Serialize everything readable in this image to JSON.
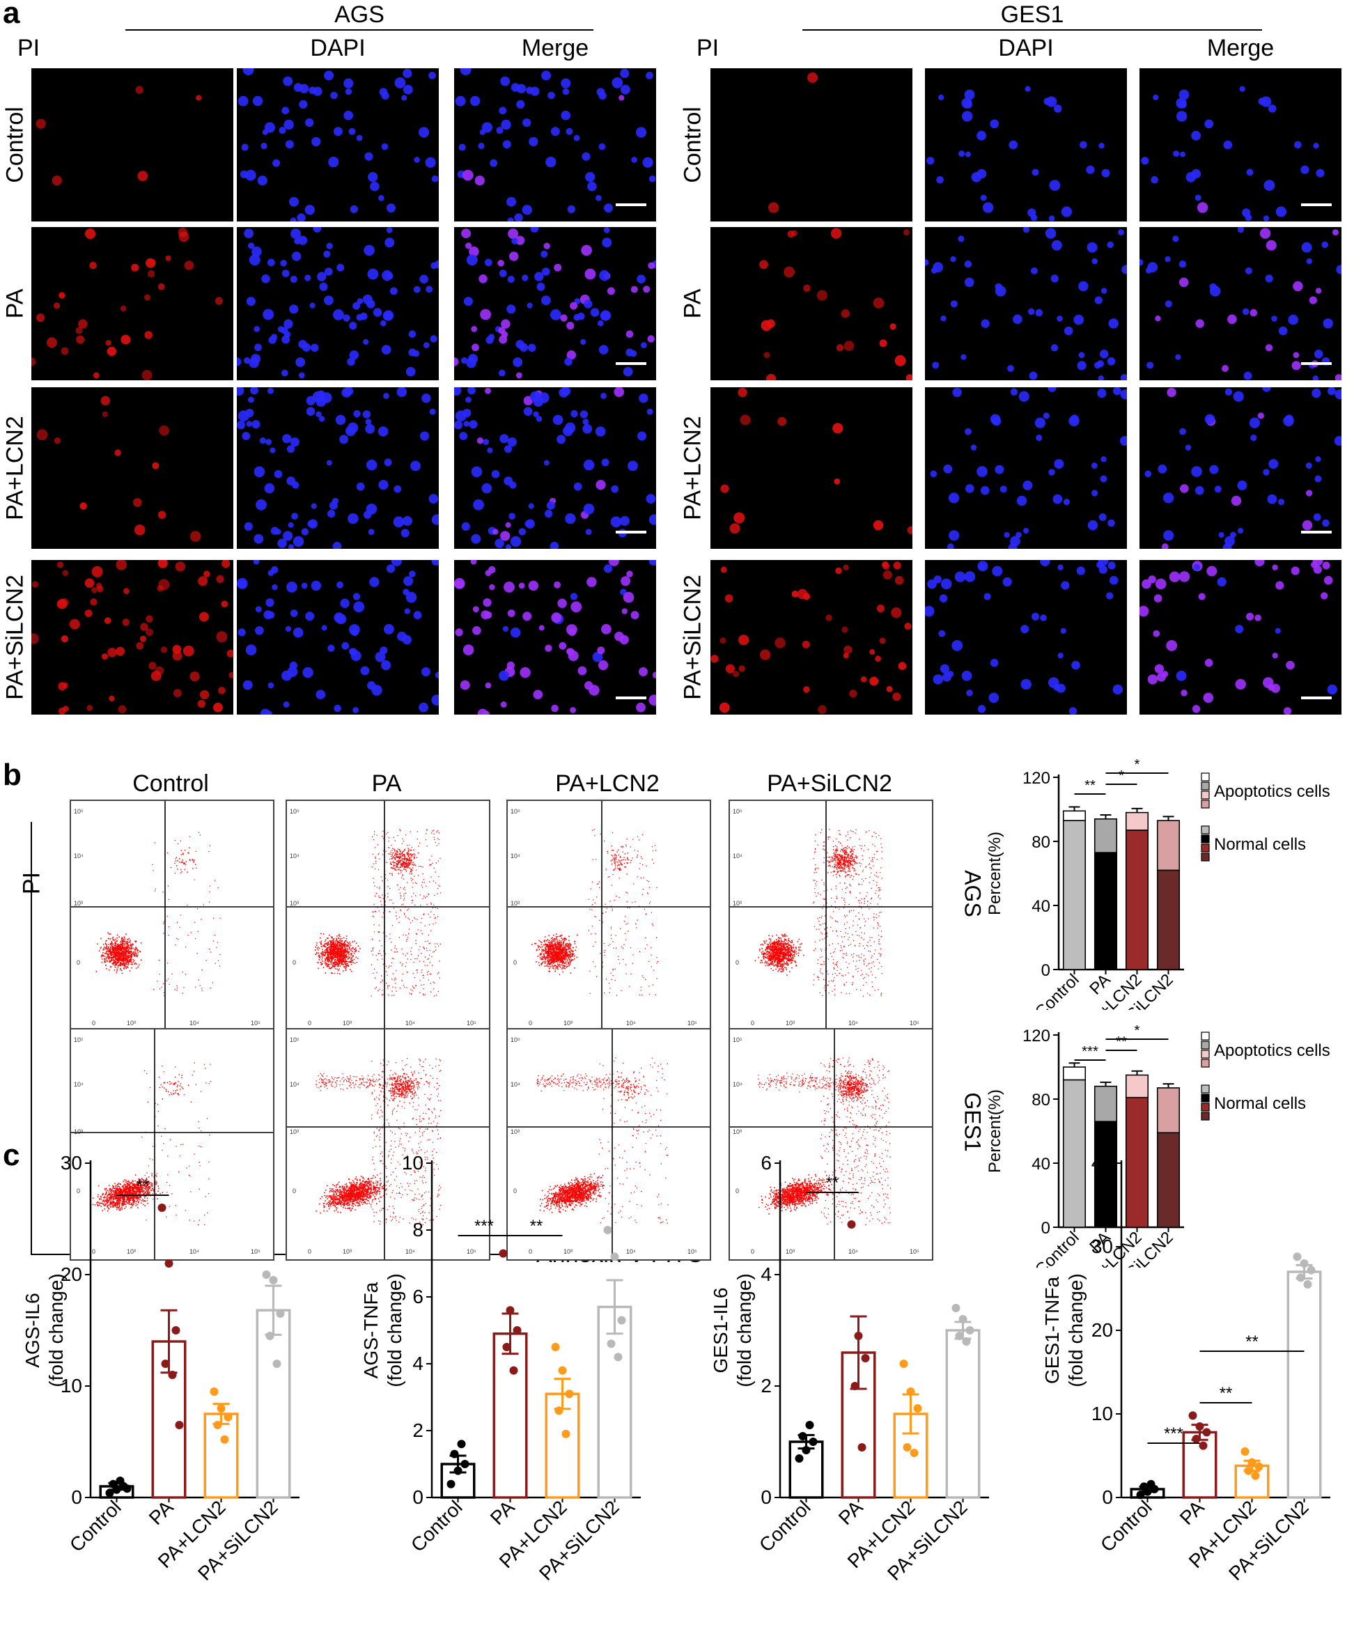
{
  "panel_labels": {
    "a": "a",
    "b": "b",
    "c": "c"
  },
  "panel_a": {
    "groups": [
      {
        "title": "AGS",
        "columns": [
          "PI",
          "DAPI",
          "Merge"
        ]
      },
      {
        "title": "GES1",
        "columns": [
          "PI",
          "DAPI",
          "Merge"
        ]
      }
    ],
    "rows": [
      "Control",
      "PA",
      "PA+LCN2",
      "PA+SiLCN2"
    ],
    "colors": {
      "PI": "#e01010",
      "DAPI": "#2a2aff",
      "Merge": "#a030ff"
    }
  },
  "panel_b": {
    "columns": [
      "Control",
      "PA",
      "PA+LCN2",
      "PA+SiLCN2"
    ],
    "rows": [
      "AGS",
      "GES1"
    ],
    "y_axis_label": "PI",
    "x_axis_label": "Annexin V-FITC",
    "dot_color": "#ff0000",
    "tick_labels": {
      "zero": "0",
      "t3": "10³",
      "t4": "10⁴",
      "t5": "10⁵"
    }
  },
  "chart_data": [
    {
      "type": "bar",
      "id": "ags-percent",
      "ylabel": "Percent(%)",
      "categories": [
        "Control",
        "PA",
        "PA+LCN2",
        "PA+SiLCN2"
      ],
      "ylim": [
        0,
        120
      ],
      "yticks": [
        0,
        40,
        80,
        120
      ],
      "series": [
        {
          "name": "Normal cells",
          "values": [
            93,
            73,
            87,
            62
          ],
          "colors": [
            "#bdbdbd",
            "#000000",
            "#9b2a2a",
            "#6b2a2a"
          ]
        },
        {
          "name": "Apoptotics cells",
          "values": [
            6,
            21,
            11,
            31
          ],
          "colors": [
            "#ffffff",
            "#a8a8a8",
            "#f5c9c9",
            "#d8a0a0"
          ]
        }
      ],
      "significance": [
        {
          "from": 0,
          "to": 1,
          "label": "**"
        },
        {
          "from": 1,
          "to": 2,
          "label": "*"
        },
        {
          "from": 1,
          "to": 3,
          "label": "*"
        }
      ]
    },
    {
      "type": "bar",
      "id": "ges1-percent",
      "ylabel": "Percent(%)",
      "categories": [
        "Control",
        "PA",
        "PA+LCN2",
        "PA+SiLCN2"
      ],
      "ylim": [
        0,
        120
      ],
      "yticks": [
        0,
        40,
        80,
        120
      ],
      "series": [
        {
          "name": "Normal cells",
          "values": [
            92,
            66,
            81,
            59
          ],
          "colors": [
            "#bdbdbd",
            "#000000",
            "#9b2a2a",
            "#6b2a2a"
          ]
        },
        {
          "name": "Apoptotics cells",
          "values": [
            8,
            22,
            14,
            28
          ],
          "colors": [
            "#ffffff",
            "#a8a8a8",
            "#f5c9c9",
            "#d8a0a0"
          ]
        }
      ],
      "significance": [
        {
          "from": 0,
          "to": 1,
          "label": "***"
        },
        {
          "from": 1,
          "to": 2,
          "label": "**"
        },
        {
          "from": 1,
          "to": 3,
          "label": "*"
        }
      ]
    },
    {
      "type": "bar",
      "id": "ags-il6",
      "ylabel": "AGS-IL6",
      "ylabel2": "(fold change)",
      "categories": [
        "Control",
        "PA",
        "PA+LCN2",
        "PA+SiLCN2"
      ],
      "ylim": [
        0,
        30
      ],
      "yticks": [
        0,
        10,
        20,
        30
      ],
      "values": [
        1.0,
        14.0,
        7.5,
        16.8
      ],
      "errors": [
        0.3,
        2.8,
        0.9,
        2.2
      ],
      "points": [
        [
          0.4,
          0.7,
          1.0,
          1.2,
          1.5,
          0.8
        ],
        [
          26.0,
          21.0,
          15.0,
          12.0,
          11.0,
          6.5
        ],
        [
          9.5,
          8.0,
          7.2,
          6.5,
          5.2
        ],
        [
          20.0,
          19.5,
          16.5,
          14.5,
          12.0
        ]
      ],
      "colors": [
        "#000000",
        "#8b1a1a",
        "#ff9a1a",
        "#b8b8b8"
      ],
      "significance": [
        {
          "from": 0,
          "to": 1,
          "label": "**"
        }
      ]
    },
    {
      "type": "bar",
      "id": "ags-tnfa",
      "ylabel": "AGS-TNFa",
      "ylabel2": "(fold change)",
      "categories": [
        "Control",
        "PA",
        "PA+LCN2",
        "PA+SiLCN2"
      ],
      "ylim": [
        0,
        10
      ],
      "yticks": [
        0,
        2,
        4,
        6,
        8,
        10
      ],
      "values": [
        1.0,
        4.9,
        3.1,
        5.7
      ],
      "errors": [
        0.25,
        0.6,
        0.45,
        0.8
      ],
      "points": [
        [
          0.4,
          0.8,
          1.0,
          1.3,
          1.6
        ],
        [
          7.3,
          5.6,
          5.0,
          4.5,
          3.8
        ],
        [
          4.5,
          3.8,
          3.1,
          2.6,
          1.9
        ],
        [
          8.0,
          7.2,
          5.3,
          4.6,
          4.2
        ]
      ],
      "colors": [
        "#000000",
        "#8b1a1a",
        "#ff9a1a",
        "#b8b8b8"
      ],
      "significance": [
        {
          "from": 0,
          "to": 1,
          "label": "***"
        },
        {
          "from": 1,
          "to": 2,
          "label": "**"
        }
      ]
    },
    {
      "type": "bar",
      "id": "ges1-il6",
      "ylabel": "GES1-IL6",
      "ylabel2": "(fold change)",
      "categories": [
        "Control",
        "PA",
        "PA+LCN2",
        "PA+SiLCN2"
      ],
      "ylim": [
        0,
        6
      ],
      "yticks": [
        0,
        2,
        4,
        6
      ],
      "values": [
        1.0,
        2.6,
        1.5,
        3.0
      ],
      "errors": [
        0.12,
        0.65,
        0.35,
        0.15
      ],
      "points": [
        [
          0.7,
          0.85,
          1.0,
          1.1,
          1.3
        ],
        [
          4.9,
          2.9,
          2.5,
          2.0,
          0.9
        ],
        [
          2.4,
          1.9,
          1.6,
          0.9,
          0.8
        ],
        [
          3.4,
          3.2,
          3.0,
          2.9,
          2.8
        ]
      ],
      "colors": [
        "#000000",
        "#8b1a1a",
        "#ff9a1a",
        "#b8b8b8"
      ],
      "significance": [
        {
          "from": 0,
          "to": 1,
          "label": "**"
        }
      ]
    },
    {
      "type": "bar",
      "id": "ges1-tnfa",
      "ylabel": "GES1-TNFa",
      "ylabel2": "(fold change)",
      "categories": [
        "Control",
        "PA",
        "PA+LCN2",
        "PA+SiLCN2"
      ],
      "ylim": [
        0,
        40
      ],
      "yticks": [
        0,
        10,
        20,
        30,
        40
      ],
      "values": [
        1.0,
        7.8,
        3.8,
        27.0
      ],
      "errors": [
        0.3,
        0.9,
        0.6,
        0.8
      ],
      "points": [
        [
          0.3,
          0.7,
          1.0,
          1.3,
          1.6
        ],
        [
          9.8,
          8.5,
          7.8,
          7.0,
          6.2
        ],
        [
          5.5,
          4.2,
          3.7,
          3.2,
          2.6
        ],
        [
          28.8,
          28.0,
          27.2,
          26.3,
          25.5
        ]
      ],
      "colors": [
        "#000000",
        "#8b1a1a",
        "#ff9a1a",
        "#b8b8b8"
      ],
      "significance": [
        {
          "from": 0,
          "to": 1,
          "label": "***"
        },
        {
          "from": 1,
          "to": 2,
          "label": "**"
        },
        {
          "from": 1,
          "to": 3,
          "label": "**"
        }
      ]
    }
  ]
}
